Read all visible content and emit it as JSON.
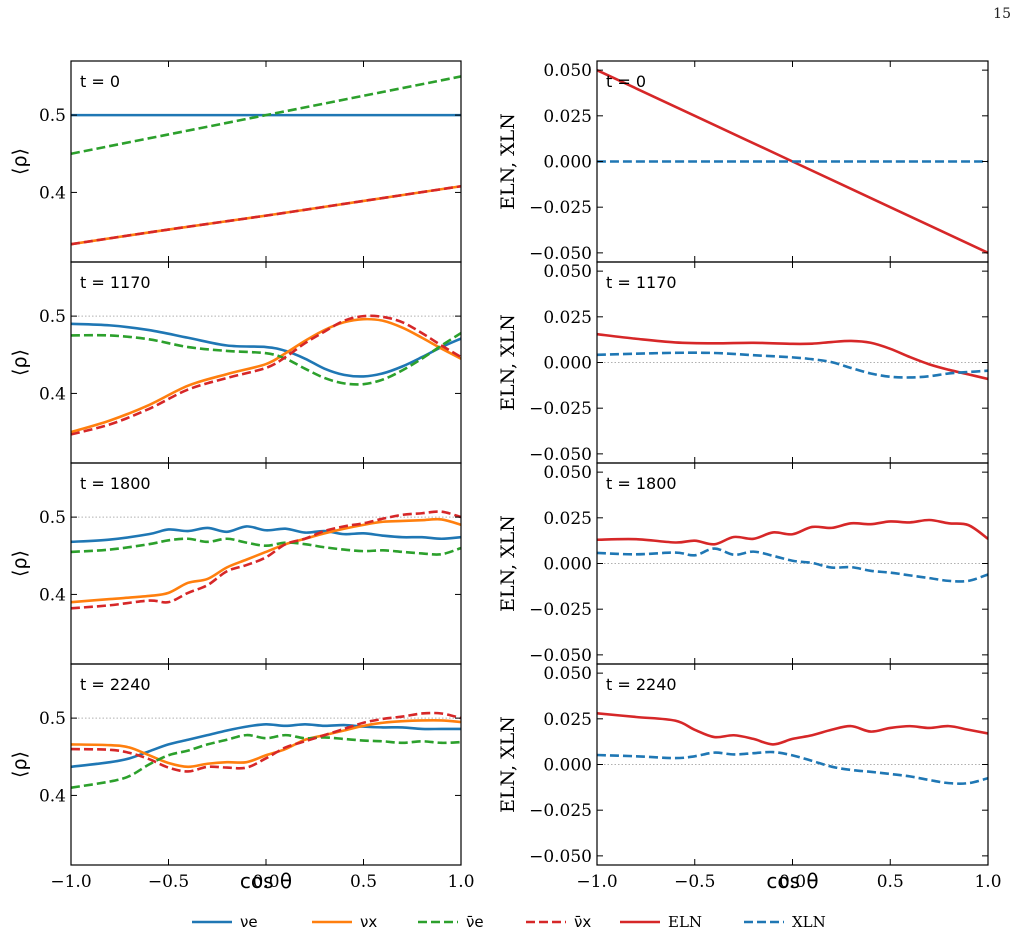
{
  "page_number": "15",
  "xlabel": "cos θ",
  "left_ylabel": "⟨ρ⟩",
  "right_ylabel": "ELN, XLN",
  "x_tick_labels": [
    "−1.0",
    "−0.5",
    "0.0",
    "0.5",
    "1.0"
  ],
  "left_y_tick_labels": [
    "0.4",
    "0.5"
  ],
  "right_y_tick_labels": [
    "−0.050",
    "−0.025",
    "0.000",
    "0.025",
    "0.050"
  ],
  "legend": [
    {
      "label": "νe",
      "color": "#1f77b4",
      "dash": "solid"
    },
    {
      "label": "νx",
      "color": "#ff7f0e",
      "dash": "solid"
    },
    {
      "label": "ν̄e",
      "color": "#2ca02c",
      "dash": "dashed"
    },
    {
      "label": "ν̄x",
      "color": "#d62728",
      "dash": "dashed"
    },
    {
      "label": "ELN",
      "color": "#d62728",
      "dash": "solid"
    },
    {
      "label": "XLN",
      "color": "#1f77b4",
      "dash": "dashed"
    }
  ],
  "chart_data": [
    {
      "type": "line",
      "row": 0,
      "col": 0,
      "annotation": "t = 0",
      "xlim": [
        -1,
        1
      ],
      "ylim": [
        0.31,
        0.57
      ],
      "ylabel": "⟨ρ⟩",
      "x": [
        -1,
        -0.5,
        0,
        0.5,
        1
      ],
      "series": [
        {
          "name": "νe",
          "values": [
            0.5,
            0.5,
            0.5,
            0.5,
            0.5
          ]
        },
        {
          "name": "νx",
          "values": [
            0.333,
            0.352,
            0.37,
            0.389,
            0.408
          ]
        },
        {
          "name": "ν̄e",
          "values": [
            0.45,
            0.475,
            0.5,
            0.525,
            0.55
          ]
        },
        {
          "name": "ν̄x",
          "values": [
            0.333,
            0.352,
            0.37,
            0.389,
            0.408
          ]
        }
      ]
    },
    {
      "type": "line",
      "row": 0,
      "col": 1,
      "annotation": "t = 0",
      "xlim": [
        -1,
        1
      ],
      "ylim": [
        -0.055,
        0.055
      ],
      "ylabel": "ELN, XLN",
      "x": [
        -1,
        -0.5,
        0,
        0.5,
        1
      ],
      "series": [
        {
          "name": "ELN",
          "values": [
            0.05,
            0.025,
            0,
            -0.025,
            -0.05
          ]
        },
        {
          "name": "XLN",
          "values": [
            0,
            0,
            0,
            0,
            0
          ]
        }
      ]
    },
    {
      "type": "line",
      "row": 1,
      "col": 0,
      "annotation": "t = 1170",
      "xlim": [
        -1,
        1
      ],
      "ylim": [
        0.31,
        0.57
      ],
      "ylabel": "⟨ρ⟩",
      "x": [
        -1,
        -0.8,
        -0.6,
        -0.4,
        -0.2,
        0,
        0.1,
        0.2,
        0.3,
        0.4,
        0.5,
        0.6,
        0.7,
        0.8,
        0.9,
        1
      ],
      "series": [
        {
          "name": "νe",
          "values": [
            0.49,
            0.488,
            0.482,
            0.472,
            0.462,
            0.46,
            0.455,
            0.445,
            0.432,
            0.424,
            0.422,
            0.426,
            0.435,
            0.447,
            0.46,
            0.471
          ]
        },
        {
          "name": "νx",
          "values": [
            0.35,
            0.365,
            0.385,
            0.41,
            0.425,
            0.438,
            0.452,
            0.468,
            0.482,
            0.492,
            0.496,
            0.494,
            0.485,
            0.472,
            0.458,
            0.445
          ]
        },
        {
          "name": "ν̄e",
          "values": [
            0.475,
            0.475,
            0.47,
            0.46,
            0.455,
            0.452,
            0.445,
            0.432,
            0.42,
            0.413,
            0.412,
            0.418,
            0.43,
            0.445,
            0.462,
            0.478
          ]
        },
        {
          "name": "ν̄x",
          "values": [
            0.347,
            0.36,
            0.38,
            0.405,
            0.42,
            0.433,
            0.447,
            0.465,
            0.48,
            0.494,
            0.5,
            0.499,
            0.492,
            0.478,
            0.462,
            0.447
          ]
        }
      ]
    },
    {
      "type": "line",
      "row": 1,
      "col": 1,
      "annotation": "t = 1170",
      "xlim": [
        -1,
        1
      ],
      "ylim": [
        -0.055,
        0.055
      ],
      "ylabel": "ELN, XLN",
      "x": [
        -1,
        -0.8,
        -0.6,
        -0.4,
        -0.2,
        0,
        0.1,
        0.2,
        0.3,
        0.4,
        0.5,
        0.6,
        0.7,
        0.8,
        0.9,
        1
      ],
      "series": [
        {
          "name": "ELN",
          "values": [
            0.0155,
            0.013,
            0.011,
            0.0105,
            0.0108,
            0.0102,
            0.0103,
            0.0112,
            0.0118,
            0.0108,
            0.0075,
            0.003,
            -0.001,
            -0.004,
            -0.0065,
            -0.009
          ]
        },
        {
          "name": "XLN",
          "values": [
            0.0042,
            0.0048,
            0.0053,
            0.0052,
            0.004,
            0.0028,
            0.0018,
            0.0002,
            -0.003,
            -0.006,
            -0.0078,
            -0.0082,
            -0.0075,
            -0.006,
            -0.0052,
            -0.0045
          ]
        }
      ]
    },
    {
      "type": "line",
      "row": 2,
      "col": 0,
      "annotation": "t = 1800",
      "xlim": [
        -1,
        1
      ],
      "ylim": [
        0.31,
        0.57
      ],
      "ylabel": "⟨ρ⟩",
      "x": [
        -1,
        -0.8,
        -0.6,
        -0.5,
        -0.4,
        -0.3,
        -0.2,
        -0.1,
        0,
        0.1,
        0.2,
        0.3,
        0.4,
        0.5,
        0.6,
        0.7,
        0.8,
        0.9,
        1
      ],
      "series": [
        {
          "name": "νe",
          "values": [
            0.468,
            0.471,
            0.478,
            0.484,
            0.482,
            0.486,
            0.481,
            0.488,
            0.483,
            0.485,
            0.48,
            0.482,
            0.478,
            0.479,
            0.476,
            0.474,
            0.474,
            0.472,
            0.474
          ]
        },
        {
          "name": "νx",
          "values": [
            0.39,
            0.394,
            0.398,
            0.402,
            0.415,
            0.42,
            0.435,
            0.445,
            0.455,
            0.465,
            0.472,
            0.479,
            0.485,
            0.49,
            0.494,
            0.495,
            0.496,
            0.497,
            0.49
          ]
        },
        {
          "name": "ν̄e",
          "values": [
            0.455,
            0.458,
            0.465,
            0.47,
            0.472,
            0.468,
            0.472,
            0.467,
            0.463,
            0.467,
            0.465,
            0.461,
            0.458,
            0.456,
            0.457,
            0.455,
            0.453,
            0.452,
            0.46
          ]
        },
        {
          "name": "ν̄x",
          "values": [
            0.382,
            0.386,
            0.392,
            0.39,
            0.402,
            0.412,
            0.43,
            0.438,
            0.448,
            0.465,
            0.472,
            0.482,
            0.488,
            0.492,
            0.498,
            0.503,
            0.505,
            0.507,
            0.5
          ]
        }
      ]
    },
    {
      "type": "line",
      "row": 2,
      "col": 1,
      "annotation": "t = 1800",
      "xlim": [
        -1,
        1
      ],
      "ylim": [
        -0.055,
        0.055
      ],
      "ylabel": "ELN, XLN",
      "x": [
        -1,
        -0.8,
        -0.6,
        -0.5,
        -0.4,
        -0.3,
        -0.2,
        -0.1,
        0,
        0.1,
        0.2,
        0.3,
        0.4,
        0.5,
        0.6,
        0.7,
        0.8,
        0.9,
        1
      ],
      "series": [
        {
          "name": "ELN",
          "values": [
            0.013,
            0.0133,
            0.0115,
            0.0125,
            0.0105,
            0.0145,
            0.0135,
            0.017,
            0.016,
            0.02,
            0.0195,
            0.022,
            0.0215,
            0.023,
            0.0225,
            0.0238,
            0.022,
            0.021,
            0.0135
          ]
        },
        {
          "name": "XLN",
          "values": [
            0.0058,
            0.005,
            0.006,
            0.0045,
            0.0082,
            0.0048,
            0.0065,
            0.0042,
            0.0015,
            0.0003,
            -0.0022,
            -0.002,
            -0.004,
            -0.005,
            -0.0065,
            -0.008,
            -0.0095,
            -0.0095,
            -0.006
          ]
        }
      ]
    },
    {
      "type": "line",
      "row": 3,
      "col": 0,
      "annotation": "t = 2240",
      "xlim": [
        -1,
        1
      ],
      "ylim": [
        0.31,
        0.57
      ],
      "ylabel": "⟨ρ⟩",
      "x": [
        -1,
        -0.8,
        -0.7,
        -0.6,
        -0.5,
        -0.4,
        -0.3,
        -0.2,
        -0.1,
        0,
        0.1,
        0.2,
        0.3,
        0.4,
        0.5,
        0.6,
        0.7,
        0.8,
        0.9,
        1
      ],
      "series": [
        {
          "name": "νe",
          "values": [
            0.437,
            0.443,
            0.448,
            0.457,
            0.466,
            0.472,
            0.478,
            0.484,
            0.489,
            0.492,
            0.49,
            0.492,
            0.49,
            0.491,
            0.489,
            0.488,
            0.488,
            0.486,
            0.486,
            0.486
          ]
        },
        {
          "name": "νx",
          "values": [
            0.466,
            0.465,
            0.462,
            0.452,
            0.442,
            0.437,
            0.441,
            0.443,
            0.443,
            0.452,
            0.46,
            0.472,
            0.478,
            0.484,
            0.49,
            0.494,
            0.496,
            0.497,
            0.497,
            0.495
          ]
        },
        {
          "name": "ν̄e",
          "values": [
            0.41,
            0.418,
            0.425,
            0.44,
            0.452,
            0.458,
            0.466,
            0.472,
            0.478,
            0.474,
            0.478,
            0.474,
            0.475,
            0.473,
            0.471,
            0.47,
            0.468,
            0.47,
            0.468,
            0.469
          ]
        },
        {
          "name": "ν̄x",
          "values": [
            0.46,
            0.459,
            0.455,
            0.447,
            0.436,
            0.431,
            0.437,
            0.436,
            0.436,
            0.448,
            0.462,
            0.47,
            0.478,
            0.486,
            0.494,
            0.499,
            0.502,
            0.506,
            0.506,
            0.5
          ]
        }
      ]
    },
    {
      "type": "line",
      "row": 3,
      "col": 1,
      "annotation": "t = 2240",
      "xlim": [
        -1,
        1
      ],
      "ylim": [
        -0.055,
        0.055
      ],
      "ylabel": "ELN, XLN",
      "x": [
        -1,
        -0.8,
        -0.6,
        -0.5,
        -0.4,
        -0.3,
        -0.2,
        -0.1,
        0,
        0.1,
        0.2,
        0.3,
        0.4,
        0.5,
        0.6,
        0.7,
        0.8,
        0.9,
        1
      ],
      "series": [
        {
          "name": "ELN",
          "values": [
            0.028,
            0.026,
            0.024,
            0.019,
            0.015,
            0.016,
            0.014,
            0.011,
            0.014,
            0.016,
            0.019,
            0.021,
            0.018,
            0.02,
            0.021,
            0.02,
            0.021,
            0.019,
            0.017
          ]
        },
        {
          "name": "XLN",
          "values": [
            0.0052,
            0.0045,
            0.0035,
            0.0045,
            0.0065,
            0.0055,
            0.0062,
            0.0068,
            0.005,
            0.002,
            -0.0012,
            -0.003,
            -0.004,
            -0.0052,
            -0.0065,
            -0.0085,
            -0.0102,
            -0.0102,
            -0.0075
          ]
        }
      ]
    }
  ]
}
